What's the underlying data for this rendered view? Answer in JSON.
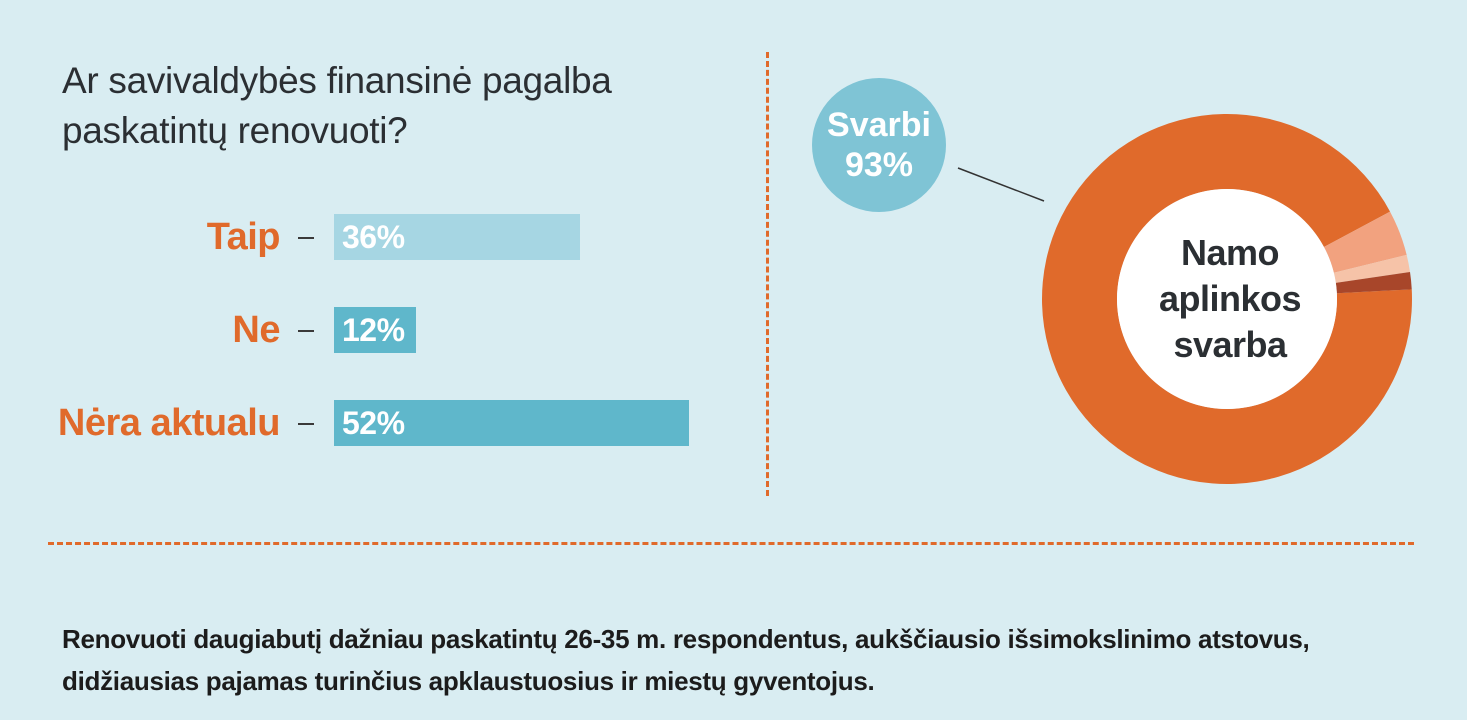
{
  "title": "Ar savivaldybės finansinė pagalba paskatintų renovuoti?",
  "footnote": "Renovuoti daugiabutį dažniau paskatintų 26-35 m. respondentus, aukščiausio išsimokslinimo atstovus, didžiausias pajamas turinčius apklaustuosius ir miestų gyventojus.",
  "colors": {
    "background": "#d9edf2",
    "accent": "#e06a2b",
    "bar_light": "#a6d6e3",
    "bar_dark": "#5fb7cb",
    "callout": "#7fc4d5"
  },
  "chart_data": [
    {
      "type": "bar",
      "orientation": "horizontal",
      "categories": [
        "Taip",
        "Ne",
        "Nėra aktualu"
      ],
      "values": [
        36,
        12,
        52
      ],
      "value_labels": [
        "36%",
        "12%",
        "52%"
      ],
      "bar_colors": [
        "#a6d6e3",
        "#5fb7cb",
        "#5fb7cb"
      ],
      "xlim": [
        0,
        100
      ]
    },
    {
      "type": "pie",
      "hole": true,
      "center_label": [
        "Namo",
        "aplinkos",
        "svarba"
      ],
      "callout": {
        "line1": "Svarbi",
        "line2": "93%"
      },
      "slices": [
        {
          "value": 93,
          "color": "#e06a2b"
        },
        {
          "value": 4,
          "color": "#f2a27f"
        },
        {
          "value": 1.5,
          "color": "#f6c3a8"
        },
        {
          "value": 1.5,
          "color": "#a8462a"
        }
      ]
    }
  ]
}
